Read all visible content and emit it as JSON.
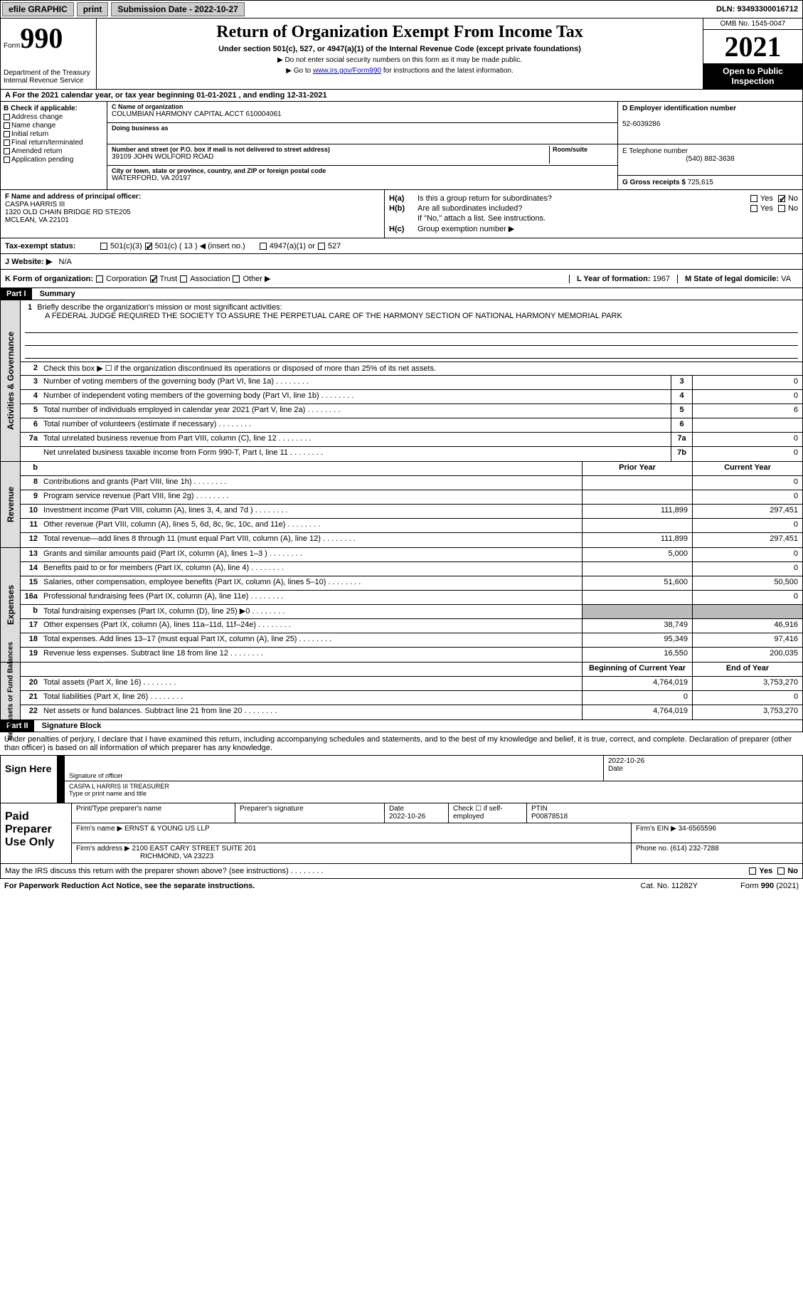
{
  "topbar": {
    "efile": "efile GRAPHIC",
    "print": "print",
    "sub_label": "Submission Date - 2022-10-27",
    "dln_label": "DLN: 93493300016712"
  },
  "header": {
    "form_label": "Form",
    "form_num": "990",
    "dept": "Department of the Treasury\nInternal Revenue Service",
    "title": "Return of Organization Exempt From Income Tax",
    "subtitle": "Under section 501(c), 527, or 4947(a)(1) of the Internal Revenue Code (except private foundations)",
    "instr1": "▶ Do not enter social security numbers on this form as it may be made public.",
    "instr2_pre": "▶ Go to ",
    "instr2_link": "www.irs.gov/Form990",
    "instr2_post": " for instructions and the latest information.",
    "omb": "OMB No. 1545-0047",
    "year": "2021",
    "open": "Open to Public Inspection"
  },
  "row_a": "A For the 2021 calendar year, or tax year beginning 01-01-2021   , and ending 12-31-2021",
  "col_b": {
    "hdr": "B Check if applicable:",
    "items": [
      "Address change",
      "Name change",
      "Initial return",
      "Final return/terminated",
      "Amended return",
      "Application pending"
    ]
  },
  "col_c": {
    "name_lbl": "C Name of organization",
    "name": "COLUMBIAN HARMONY CAPITAL ACCT 610004061",
    "dba_lbl": "Doing business as",
    "dba": "",
    "addr_lbl": "Number and street (or P.O. box if mail is not delivered to street address)",
    "room_lbl": "Room/suite",
    "addr": "39109 JOHN WOLFORD ROAD",
    "city_lbl": "City or town, state or province, country, and ZIP or foreign postal code",
    "city": "WATERFORD, VA  20197"
  },
  "col_d": {
    "ein_lbl": "D Employer identification number",
    "ein": "52-6039286",
    "tel_lbl": "E Telephone number",
    "tel": "(540) 882-3638",
    "gross_lbl": "G Gross receipts $",
    "gross": "725,615"
  },
  "col_f": {
    "lbl": "F Name and address of principal officer:",
    "name": "CASPA HARRIS III",
    "addr1": "1320 OLD CHAIN BRIDGE RD STE205",
    "addr2": "MCLEAN, VA  22101"
  },
  "col_h": {
    "ha": "Is this a group return for subordinates?",
    "hb": "Are all subordinates included?",
    "hb_note": "If \"No,\" attach a list. See instructions.",
    "hc": "Group exemption number ▶",
    "yes": "Yes",
    "no": "No"
  },
  "tax_status": {
    "lbl": "Tax-exempt status:",
    "opts": [
      "501(c)(3)",
      "501(c) ( 13 ) ◀ (insert no.)",
      "4947(a)(1) or",
      "527"
    ]
  },
  "website": {
    "lbl": "J  Website: ▶",
    "val": "N/A"
  },
  "org_form": {
    "lbl": "K Form of organization:",
    "opts": [
      "Corporation",
      "Trust",
      "Association",
      "Other ▶"
    ],
    "year_lbl": "L Year of formation:",
    "year": "1967",
    "state_lbl": "M State of legal domicile:",
    "state": "VA"
  },
  "part1": {
    "hdr": "Part I",
    "title": "Summary",
    "l1_lbl": "Briefly describe the organization's mission or most significant activities:",
    "l1_val": "A FEDERAL JUDGE REQUIRED THE SOCIETY TO ASSURE THE PERPETUAL CARE OF THE HARMONY SECTION OF NATIONAL HARMONY MEMORIAL PARK",
    "l2": "Check this box ▶ ☐ if the organization discontinued its operations or disposed of more than 25% of its net assets.",
    "lines_gov": [
      {
        "n": "3",
        "d": "Number of voting members of the governing body (Part VI, line 1a)",
        "c": "3",
        "v": "0"
      },
      {
        "n": "4",
        "d": "Number of independent voting members of the governing body (Part VI, line 1b)",
        "c": "4",
        "v": "0"
      },
      {
        "n": "5",
        "d": "Total number of individuals employed in calendar year 2021 (Part V, line 2a)",
        "c": "5",
        "v": "6"
      },
      {
        "n": "6",
        "d": "Total number of volunteers (estimate if necessary)",
        "c": "6",
        "v": ""
      },
      {
        "n": "7a",
        "d": "Total unrelated business revenue from Part VIII, column (C), line 12",
        "c": "7a",
        "v": "0"
      },
      {
        "n": "",
        "d": "Net unrelated business taxable income from Form 990-T, Part I, line 11",
        "c": "7b",
        "v": "0"
      }
    ],
    "col_hdr_prior": "Prior Year",
    "col_hdr_curr": "Current Year",
    "lines_rev": [
      {
        "n": "8",
        "d": "Contributions and grants (Part VIII, line 1h)",
        "p": "",
        "c": "0"
      },
      {
        "n": "9",
        "d": "Program service revenue (Part VIII, line 2g)",
        "p": "",
        "c": "0"
      },
      {
        "n": "10",
        "d": "Investment income (Part VIII, column (A), lines 3, 4, and 7d )",
        "p": "111,899",
        "c": "297,451"
      },
      {
        "n": "11",
        "d": "Other revenue (Part VIII, column (A), lines 5, 6d, 8c, 9c, 10c, and 11e)",
        "p": "",
        "c": "0"
      },
      {
        "n": "12",
        "d": "Total revenue—add lines 8 through 11 (must equal Part VIII, column (A), line 12)",
        "p": "111,899",
        "c": "297,451"
      }
    ],
    "lines_exp": [
      {
        "n": "13",
        "d": "Grants and similar amounts paid (Part IX, column (A), lines 1–3 )",
        "p": "5,000",
        "c": "0"
      },
      {
        "n": "14",
        "d": "Benefits paid to or for members (Part IX, column (A), line 4)",
        "p": "",
        "c": "0"
      },
      {
        "n": "15",
        "d": "Salaries, other compensation, employee benefits (Part IX, column (A), lines 5–10)",
        "p": "51,600",
        "c": "50,500"
      },
      {
        "n": "16a",
        "d": "Professional fundraising fees (Part IX, column (A), line 11e)",
        "p": "",
        "c": "0"
      },
      {
        "n": "b",
        "d": "Total fundraising expenses (Part IX, column (D), line 25) ▶0",
        "p": "shade",
        "c": "shade"
      },
      {
        "n": "17",
        "d": "Other expenses (Part IX, column (A), lines 11a–11d, 11f–24e)",
        "p": "38,749",
        "c": "46,916"
      },
      {
        "n": "18",
        "d": "Total expenses. Add lines 13–17 (must equal Part IX, column (A), line 25)",
        "p": "95,349",
        "c": "97,416"
      },
      {
        "n": "19",
        "d": "Revenue less expenses. Subtract line 18 from line 12",
        "p": "16,550",
        "c": "200,035"
      }
    ],
    "col_hdr_boy": "Beginning of Current Year",
    "col_hdr_eoy": "End of Year",
    "lines_net": [
      {
        "n": "20",
        "d": "Total assets (Part X, line 16)",
        "p": "4,764,019",
        "c": "3,753,270"
      },
      {
        "n": "21",
        "d": "Total liabilities (Part X, line 26)",
        "p": "0",
        "c": "0"
      },
      {
        "n": "22",
        "d": "Net assets or fund balances. Subtract line 21 from line 20",
        "p": "4,764,019",
        "c": "3,753,270"
      }
    ]
  },
  "side_labels": {
    "gov": "Activities & Governance",
    "rev": "Revenue",
    "exp": "Expenses",
    "net": "Net Assets or Fund Balances"
  },
  "part2": {
    "hdr": "Part II",
    "title": "Signature Block",
    "decl": "Under penalties of perjury, I declare that I have examined this return, including accompanying schedules and statements, and to the best of my knowledge and belief, it is true, correct, and complete. Declaration of preparer (other than officer) is based on all information of which preparer has any knowledge.",
    "sign_here": "Sign Here",
    "sig_officer": "Signature of officer",
    "sig_date": "2022-10-26",
    "date_lbl": "Date",
    "officer_name": "CASPA L HARRIS III  TREASURER",
    "type_name": "Type or print name and title",
    "paid_prep": "Paid Preparer Use Only",
    "prep_name_lbl": "Print/Type preparer's name",
    "prep_sig_lbl": "Preparer's signature",
    "prep_date_lbl": "Date",
    "prep_date": "2022-10-26",
    "self_emp": "Check ☐ if self-employed",
    "ptin_lbl": "PTIN",
    "ptin": "P00878518",
    "firm_name_lbl": "Firm's name    ▶",
    "firm_name": "ERNST & YOUNG US LLP",
    "firm_ein_lbl": "Firm's EIN ▶",
    "firm_ein": "34-6565596",
    "firm_addr_lbl": "Firm's address ▶",
    "firm_addr": "2100 EAST CARY STREET SUITE 201",
    "firm_city": "RICHMOND, VA  23223",
    "phone_lbl": "Phone no.",
    "phone": "(614) 232-7288",
    "discuss": "May the IRS discuss this return with the preparer shown above? (see instructions)",
    "paperwork": "For Paperwork Reduction Act Notice, see the separate instructions.",
    "cat": "Cat. No. 11282Y",
    "form_foot": "Form 990 (2021)"
  }
}
